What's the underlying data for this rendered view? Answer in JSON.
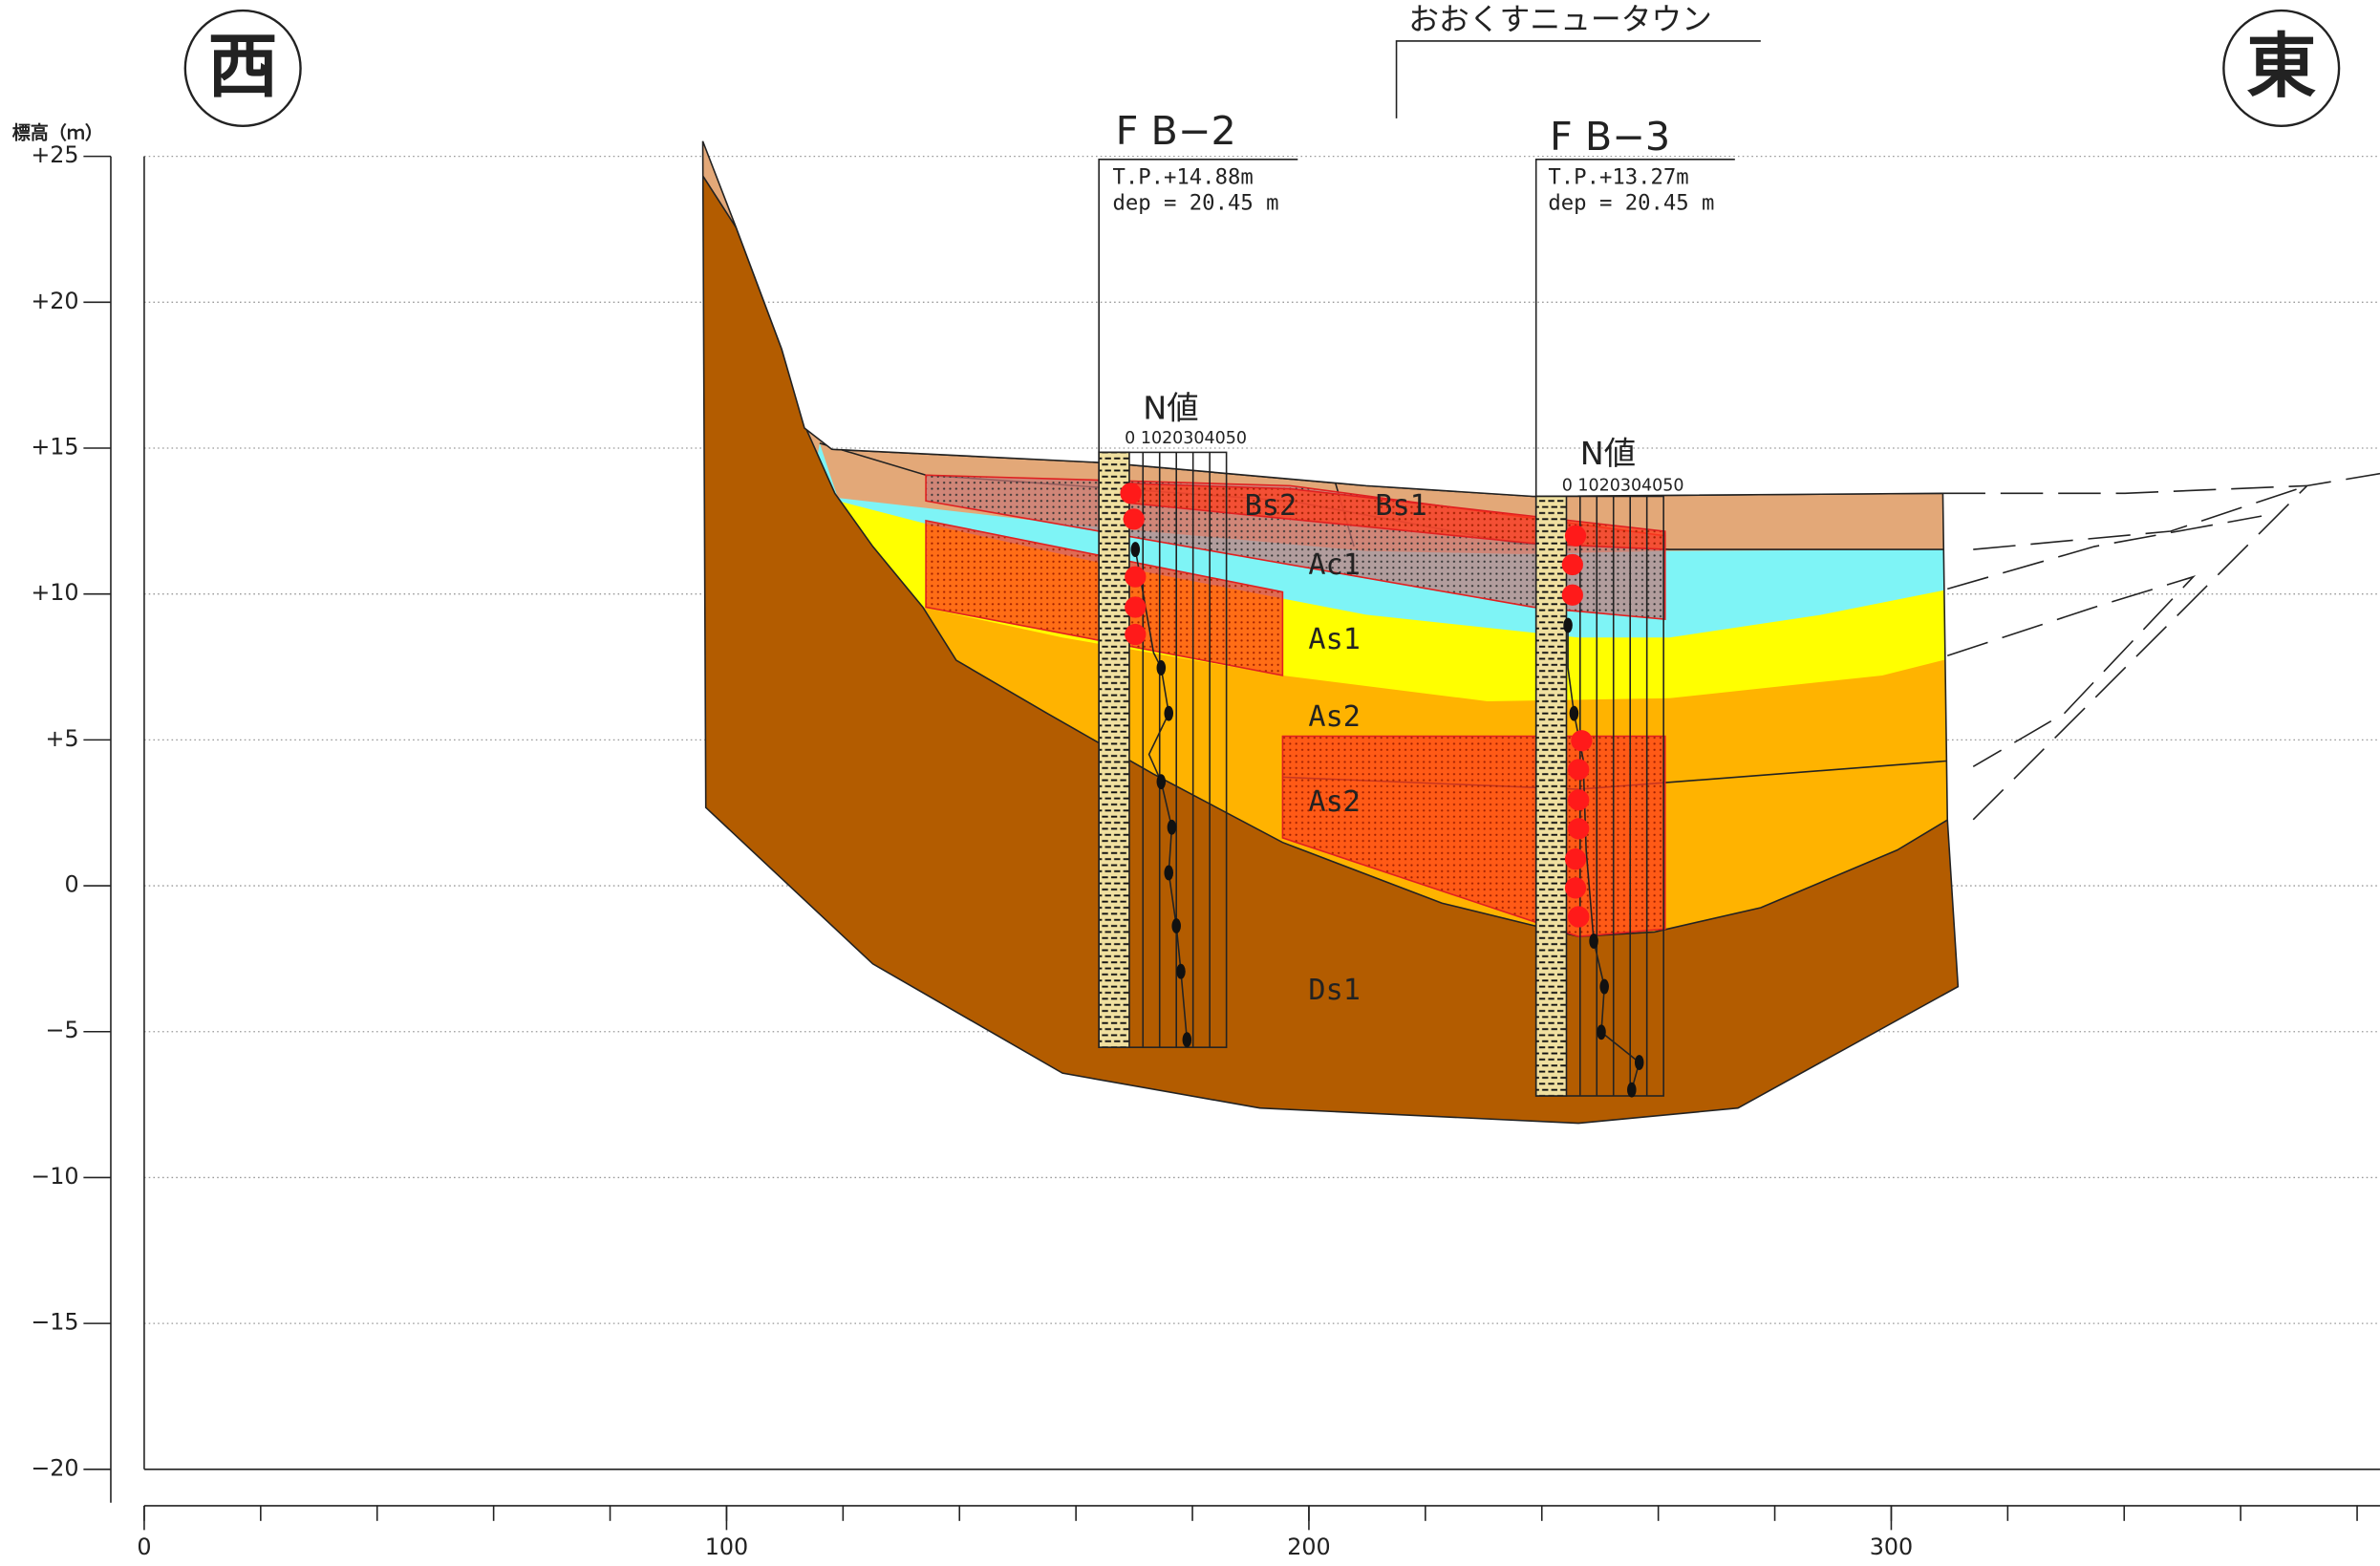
{
  "header": {
    "west": "西",
    "east": "東",
    "site": "おおくすニュータウン"
  },
  "axes": {
    "y_label": "標高（ｍ）",
    "yticks": [
      {
        "value": 25,
        "label": "+25"
      },
      {
        "value": 20,
        "label": "+20"
      },
      {
        "value": 15,
        "label": "+15"
      },
      {
        "value": 10,
        "label": "+10"
      },
      {
        "value": 5,
        "label": "+5"
      },
      0,
      {
        "value": -5,
        "label": "−5"
      },
      {
        "value": -10,
        "label": "−10"
      },
      {
        "value": -15,
        "label": "−15"
      },
      {
        "value": -20,
        "label": "−20"
      }
    ],
    "xticks": [
      0,
      100,
      200,
      300
    ]
  },
  "boreholes": [
    {
      "name": "F B−2",
      "tp": "T.P.+14.88m",
      "dep": "dep = 20.45 m",
      "n_label": "N値",
      "n_scale": "0 1020304050"
    },
    {
      "name": "F B−3",
      "tp": "T.P.+13.27m",
      "dep": "dep = 20.45 m",
      "n_label": "N値",
      "n_scale": "0 1020304050"
    }
  ],
  "layers": [
    "Bs2",
    "Bs1",
    "Ac1",
    "As1",
    "As2",
    "As2",
    "Ds1"
  ]
}
